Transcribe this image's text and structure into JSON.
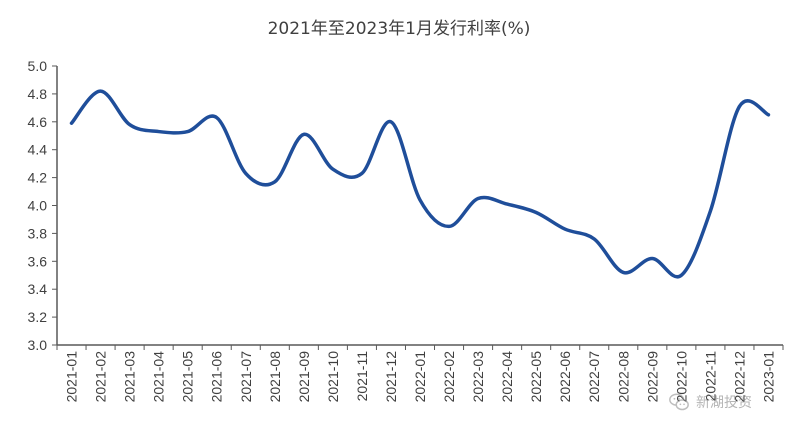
{
  "chart_data": {
    "type": "line",
    "title": "2021年至2023年1月发行利率(%)",
    "xlabel": "",
    "ylabel": "",
    "categories": [
      "2021-01",
      "2021-02",
      "2021-03",
      "2021-04",
      "2021-05",
      "2021-06",
      "2021-07",
      "2021-08",
      "2021-09",
      "2021-10",
      "2021-11",
      "2021-12",
      "2022-01",
      "2022-02",
      "2022-03",
      "2022-04",
      "2022-05",
      "2022-06",
      "2022-07",
      "2022-08",
      "2022-09",
      "2022-10",
      "2022-11",
      "2022-12",
      "2023-01"
    ],
    "series": [
      {
        "values": [
          4.59,
          4.82,
          4.58,
          4.53,
          4.53,
          4.63,
          4.23,
          4.17,
          4.51,
          4.26,
          4.23,
          4.6,
          4.04,
          3.85,
          4.05,
          4.01,
          3.95,
          3.83,
          3.76,
          3.52,
          3.62,
          3.5,
          3.96,
          4.71,
          4.65
        ],
        "color": "#1F4E9A"
      }
    ],
    "ylim": [
      3.0,
      5.0
    ],
    "yticks": [
      "3.0",
      "3.2",
      "3.4",
      "3.6",
      "3.8",
      "4.0",
      "4.2",
      "4.4",
      "4.6",
      "4.8",
      "5.0"
    ],
    "grid": false,
    "legend": "none"
  },
  "watermark": {
    "text": "新湖投资",
    "logo_icon": "wechat-logo-icon"
  }
}
